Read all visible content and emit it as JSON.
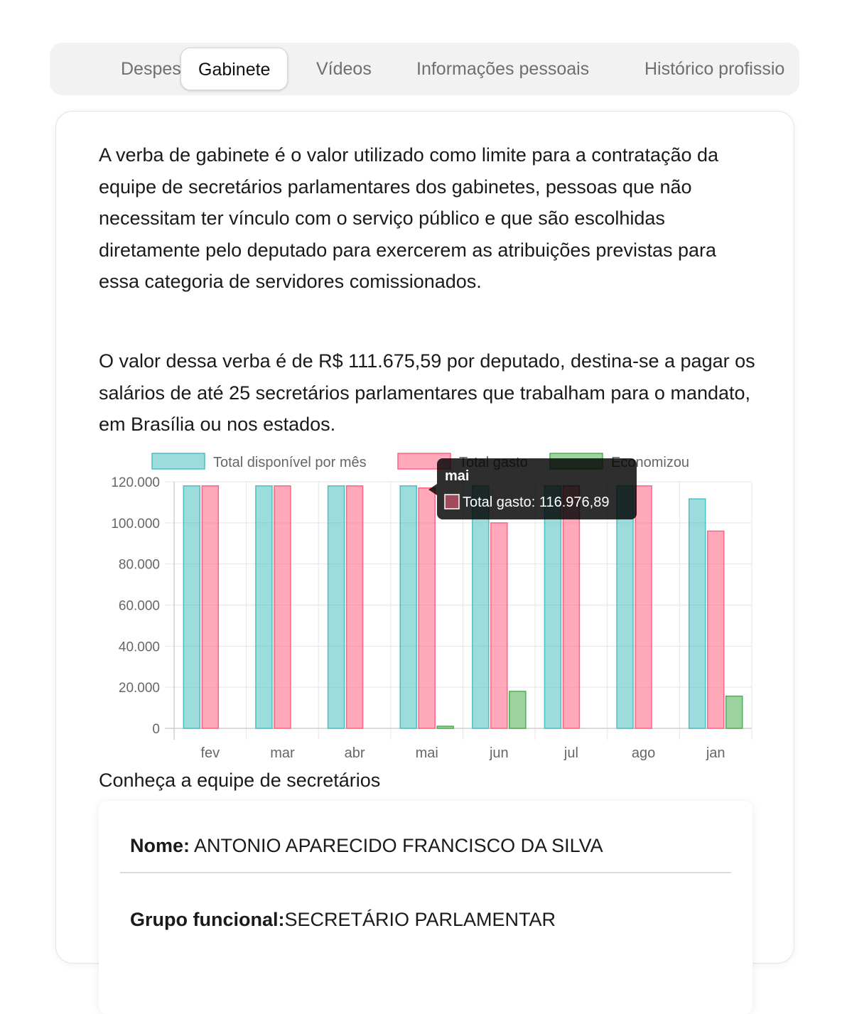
{
  "tabs": [
    {
      "label": "Despesas",
      "active": false
    },
    {
      "label": "Gabinete",
      "active": true
    },
    {
      "label": "Vídeos",
      "active": false
    },
    {
      "label": "Informações pessoais",
      "active": false
    },
    {
      "label": "Histórico profissio",
      "active": false
    }
  ],
  "content": {
    "paragraph1": "A verba de gabinete é o valor utilizado como limite para a contratação da equipe de secretários parlamentares dos gabinetes, pessoas que não necessitam ter vínculo com o serviço público e que são escolhidas diretamente pelo deputado para exercerem as atribuições previstas para essa categoria de servidores comissionados.",
    "paragraph2": "O valor dessa verba é de R$ 111.675,59 por deputado, destina-se a pagar os salários de até 25 secretários parlamentares que trabalham para o mandato, em Brasília ou nos estados."
  },
  "chart_data": {
    "type": "bar",
    "categories": [
      "fev",
      "mar",
      "abr",
      "mai",
      "jun",
      "jul",
      "ago",
      "jan"
    ],
    "series": [
      {
        "name": "Total disponível por mês",
        "values": [
          118000,
          118000,
          118000,
          118000,
          118000,
          118000,
          118000,
          111675.59
        ],
        "color": "#4bc0c0"
      },
      {
        "name": "Total gasto",
        "values": [
          118000,
          118000,
          118000,
          116976.89,
          100000,
          118000,
          118000,
          96000
        ],
        "color": "#ff6384"
      },
      {
        "name": "Economizou",
        "values": [
          0,
          0,
          0,
          1023.11,
          18000,
          0,
          0,
          15675.59
        ],
        "color": "#4caf50"
      }
    ],
    "yticks": [
      "0",
      "20.000",
      "40.000",
      "60.000",
      "80.000",
      "100.000",
      "120.000"
    ],
    "ylim": [
      0,
      120000
    ],
    "grid": true,
    "legend": "top",
    "tooltip": {
      "title": "mai",
      "label": "Total gasto: 116.976,89",
      "category": "mai",
      "series": "Total gasto"
    }
  },
  "team": {
    "title": "Conheça a equipe de secretários",
    "name_label": "Nome:",
    "name_value": "ANTONIO APARECIDO FRANCISCO DA SILVA",
    "group_label": "Grupo funcional:",
    "group_value": "SECRETÁRIO PARLAMENTAR"
  }
}
